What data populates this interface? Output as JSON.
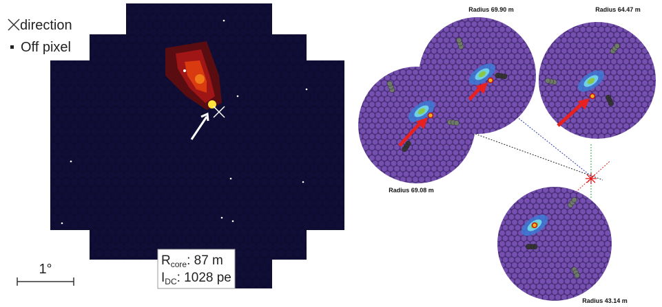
{
  "legend": {
    "direction": "direction",
    "off_pixel": "Off pixel"
  },
  "scale_bar": {
    "label": "1°"
  },
  "info_box": {
    "r_symbol": "R",
    "r_subscript": "core",
    "r_value": ": 87 m",
    "i_symbol": "I",
    "i_subscript": "DC",
    "i_value": ": 1028 pe"
  },
  "cameras": [
    {
      "label": "Radius 69.90 m"
    },
    {
      "label": "Radius 64.47 m"
    },
    {
      "label": "Radius 69.08 m"
    },
    {
      "label": "Radius 43.14 m"
    }
  ]
}
